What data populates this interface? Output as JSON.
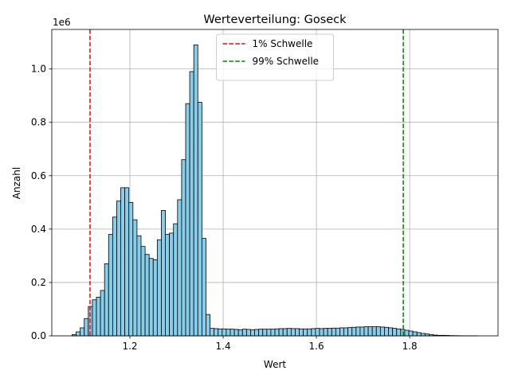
{
  "chart_data": {
    "type": "histogram",
    "title": "Werteverteilung: Goseck",
    "xlabel": "Wert",
    "ylabel": "Anzahl",
    "y_offset_label": "1e6",
    "bins": [
      1.076,
      1.0847,
      1.0934,
      1.1021,
      1.1108,
      1.1195,
      1.1282,
      1.1369,
      1.1456,
      1.1543,
      1.163,
      1.1717,
      1.1804,
      1.1891,
      1.1978,
      1.2065,
      1.2152,
      1.2239,
      1.2326,
      1.2413,
      1.25,
      1.2587,
      1.2674,
      1.2761,
      1.2848,
      1.2935,
      1.3022,
      1.3109,
      1.3196,
      1.3283,
      1.337,
      1.3457,
      1.3544,
      1.3631,
      1.3718,
      1.3805,
      1.3892,
      1.3979,
      1.4066,
      1.4153,
      1.424,
      1.4327,
      1.4414,
      1.4501,
      1.4588,
      1.4675,
      1.4762,
      1.4849,
      1.4936,
      1.5023,
      1.511,
      1.5197,
      1.5284,
      1.5371,
      1.5458,
      1.5545,
      1.5632,
      1.5719,
      1.5806,
      1.5893,
      1.598,
      1.6067,
      1.6154,
      1.6241,
      1.6328,
      1.6415,
      1.6502,
      1.6589,
      1.6676,
      1.6763,
      1.685,
      1.6937,
      1.7024,
      1.7111,
      1.7198,
      1.7285,
      1.7372,
      1.7459,
      1.7546,
      1.7633,
      1.772,
      1.7807,
      1.7894,
      1.7981,
      1.8068,
      1.8155,
      1.8242,
      1.8329,
      1.8416,
      1.8503,
      1.859,
      1.8677,
      1.8764,
      1.8851,
      1.8938,
      1.9025,
      1.9112,
      1.9199,
      1.9286,
      1.9373,
      1.946
    ],
    "values": [
      5000,
      15000,
      30000,
      65000,
      110000,
      135000,
      145000,
      170000,
      270000,
      380000,
      445000,
      505000,
      555000,
      555000,
      500000,
      435000,
      375000,
      335000,
      305000,
      290000,
      285000,
      360000,
      470000,
      380000,
      385000,
      420000,
      510000,
      660000,
      870000,
      990000,
      1090000,
      875000,
      365000,
      80000,
      28000,
      27000,
      26000,
      26000,
      25000,
      25000,
      24000,
      23000,
      25000,
      24000,
      23000,
      24000,
      25000,
      25000,
      25000,
      25000,
      26000,
      27000,
      27000,
      28000,
      27000,
      27000,
      26000,
      26000,
      26000,
      27000,
      28000,
      27000,
      28000,
      28000,
      29000,
      29000,
      30000,
      30000,
      31000,
      32000,
      33000,
      33000,
      34000,
      34000,
      34000,
      34000,
      33000,
      32000,
      30000,
      28000,
      26000,
      24000,
      21000,
      18000,
      15000,
      12000,
      9000,
      7000,
      5000,
      3000,
      2000,
      2000,
      1500,
      1000,
      800,
      500,
      300,
      200,
      100,
      50
    ],
    "color": "#87ceeb",
    "edgecolor": "#000000",
    "lines": [
      {
        "name": "1% Schwelle",
        "color": "#ff0000",
        "value": 1.1145
      },
      {
        "name": "99% Schwelle",
        "color": "#008000",
        "value": 1.7863
      }
    ],
    "legend": "upper center",
    "grid": true,
    "xlim": [
      1.0325,
      1.9895
    ],
    "xticks": [
      1.2,
      1.4,
      1.6,
      1.8
    ],
    "ylim": [
      0,
      1148000
    ],
    "yticks": [
      {
        "value": 0,
        "label": "0.0"
      },
      {
        "value": 200000,
        "label": "0.2"
      },
      {
        "value": 400000,
        "label": "0.4"
      },
      {
        "value": 600000,
        "label": "0.6"
      },
      {
        "value": 800000,
        "label": "0.8"
      },
      {
        "value": 1000000,
        "label": "1.0"
      }
    ]
  }
}
